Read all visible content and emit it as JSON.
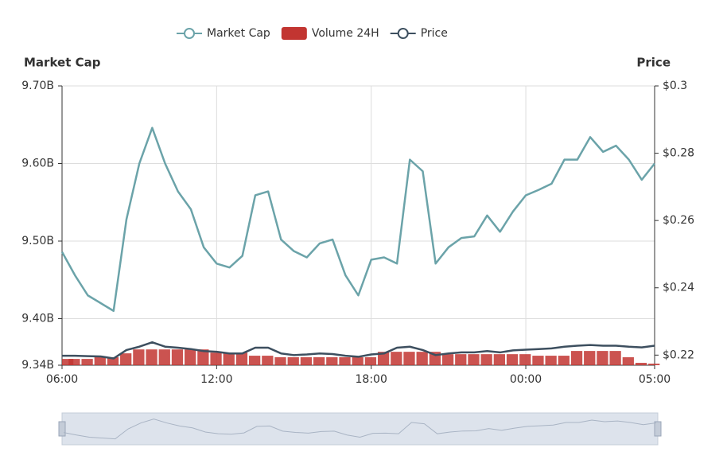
{
  "chart_data": {
    "type": "line",
    "x": [
      0,
      0.5,
      1,
      1.5,
      2,
      2.5,
      3,
      3.5,
      4,
      4.5,
      5,
      5.5,
      6,
      6.5,
      7,
      7.5,
      8,
      8.5,
      9,
      9.5,
      10,
      10.5,
      11,
      11.5,
      12,
      12.5,
      13,
      13.5,
      14,
      14.5,
      15,
      15.5,
      16,
      16.5,
      17,
      17.5,
      18,
      18.5,
      19,
      19.5,
      20,
      20.5,
      21,
      21.5,
      22,
      22.5,
      23
    ],
    "xlim": [
      0,
      23
    ],
    "xticks": [
      {
        "value": 0,
        "label": "06:00"
      },
      {
        "value": 6,
        "label": "12:00"
      },
      {
        "value": 12,
        "label": "18:00"
      },
      {
        "value": 18,
        "label": "00:00"
      },
      {
        "value": 23,
        "label": "05:00"
      }
    ],
    "ylabel": "Market Cap",
    "y2label": "Price",
    "ylim": [
      9340000000,
      9700000000
    ],
    "yticks": [
      {
        "value": 9340000000,
        "label": "9.34B"
      },
      {
        "value": 9400000000,
        "label": "9.40B"
      },
      {
        "value": 9500000000,
        "label": "9.50B"
      },
      {
        "value": 9600000000,
        "label": "9.60B"
      },
      {
        "value": 9700000000,
        "label": "9.70B"
      }
    ],
    "y2lim": [
      0.217,
      0.3
    ],
    "y2ticks": [
      {
        "value": 0.22,
        "label": "$0.22"
      },
      {
        "value": 0.24,
        "label": "$0.24"
      },
      {
        "value": 0.26,
        "label": "$0.26"
      },
      {
        "value": 0.28,
        "label": "$0.28"
      },
      {
        "value": 0.3,
        "label": "$0.3"
      }
    ],
    "y3lim": [
      0,
      2000000000
    ],
    "grid": true,
    "legend": "top",
    "series": [
      {
        "name": "Market Cap",
        "color": "#6ba3a9",
        "type": "line",
        "values": [
          9486000000,
          9456000000,
          9430000000,
          9420000000,
          9410000000,
          9528000000,
          9600000000,
          9646000000,
          9600000000,
          9564000000,
          9541000000,
          9492000000,
          9471000000,
          9466000000,
          9481000000,
          9559000000,
          9564000000,
          9502000000,
          9487000000,
          9479000000,
          9497000000,
          9502000000,
          9456000000,
          9430000000,
          9476000000,
          9479000000,
          9471000000,
          9605000000,
          9590000000,
          9471000000,
          9492000000,
          9504000000,
          9506000000,
          9533000000,
          9512000000,
          9538000000,
          9559000000,
          9566000000,
          9574000000,
          9605000000,
          9605000000,
          9634000000,
          9615000000,
          9623000000,
          9605000000,
          9579000000,
          9600000000
        ]
      },
      {
        "name": "Volume 24H",
        "color": "#c23531",
        "type": "bar",
        "axis": "y3",
        "values": [
          45000000,
          45000000,
          45000000,
          57000000,
          57000000,
          85000000,
          113000000,
          113000000,
          113000000,
          113000000,
          113000000,
          113000000,
          90000000,
          90000000,
          90000000,
          68000000,
          68000000,
          57000000,
          57000000,
          57000000,
          57000000,
          57000000,
          57000000,
          57000000,
          57000000,
          96000000,
          96000000,
          96000000,
          96000000,
          96000000,
          79000000,
          79000000,
          79000000,
          79000000,
          79000000,
          79000000,
          79000000,
          68000000,
          68000000,
          68000000,
          102000000,
          102000000,
          102000000,
          102000000,
          57000000,
          17000000,
          11000000
        ]
      },
      {
        "name": "Price",
        "color": "#3d4f5f",
        "type": "line",
        "axis": "y2",
        "values": [
          0.2198,
          0.2198,
          0.2197,
          0.2196,
          0.219,
          0.2215,
          0.2225,
          0.2238,
          0.2225,
          0.2222,
          0.2218,
          0.2212,
          0.221,
          0.2205,
          0.2205,
          0.2222,
          0.2222,
          0.2205,
          0.22,
          0.2202,
          0.2205,
          0.2203,
          0.2198,
          0.2195,
          0.2202,
          0.2205,
          0.2222,
          0.2225,
          0.2215,
          0.22,
          0.2205,
          0.2208,
          0.2208,
          0.2212,
          0.2208,
          0.2214,
          0.2216,
          0.2218,
          0.222,
          0.2225,
          0.2228,
          0.223,
          0.2228,
          0.2228,
          0.2225,
          0.2223,
          0.2228
        ]
      }
    ]
  }
}
